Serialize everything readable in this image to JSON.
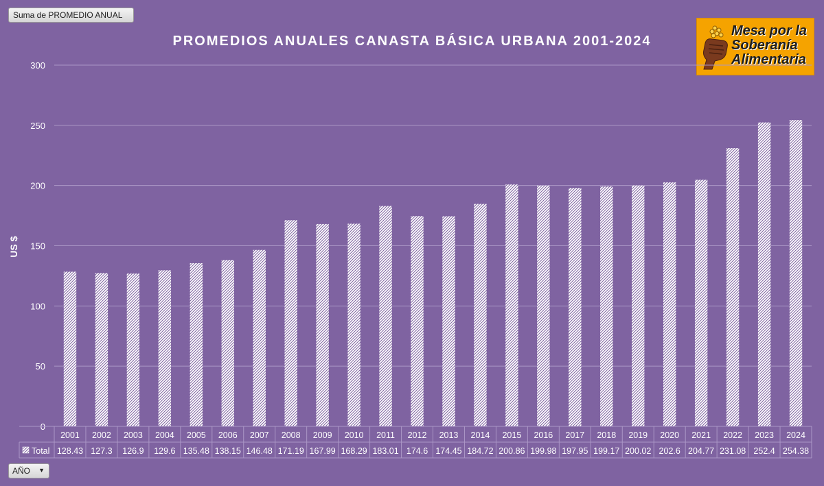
{
  "pivot": {
    "field_button_label": "Suma de PROMEDIO ANUAL",
    "filter_label": "AÑO"
  },
  "logo": {
    "lines": [
      "Mesa por la",
      "Soberanía",
      "Alimentaria"
    ]
  },
  "colors": {
    "background": "#7f63a1",
    "bar": "#ffffff",
    "hatch": "#7f63a1",
    "gridline": "#ab97c6",
    "logo_bg": "#f5a300"
  },
  "chart_data": {
    "type": "bar",
    "title": "PROMEDIOS ANUALES CANASTA BÁSICA URBANA 2001-2024",
    "xlabel": "",
    "ylabel": "US $",
    "ylim": [
      0,
      300
    ],
    "yticks": [
      0,
      50,
      100,
      150,
      200,
      250,
      300
    ],
    "grid": true,
    "categories": [
      "2001",
      "2002",
      "2003",
      "2004",
      "2005",
      "2006",
      "2007",
      "2008",
      "2009",
      "2010",
      "2011",
      "2012",
      "2013",
      "2014",
      "2015",
      "2016",
      "2017",
      "2018",
      "2019",
      "2020",
      "2021",
      "2022",
      "2023",
      "2024"
    ],
    "series": [
      {
        "name": "Total",
        "values": [
          128.43,
          127.3,
          126.9,
          129.6,
          135.48,
          138.15,
          146.48,
          171.19,
          167.99,
          168.29,
          183.01,
          174.6,
          174.45,
          184.72,
          200.86,
          199.98,
          197.95,
          199.17,
          200.02,
          202.6,
          204.77,
          231.08,
          252.4,
          254.38
        ]
      }
    ]
  }
}
